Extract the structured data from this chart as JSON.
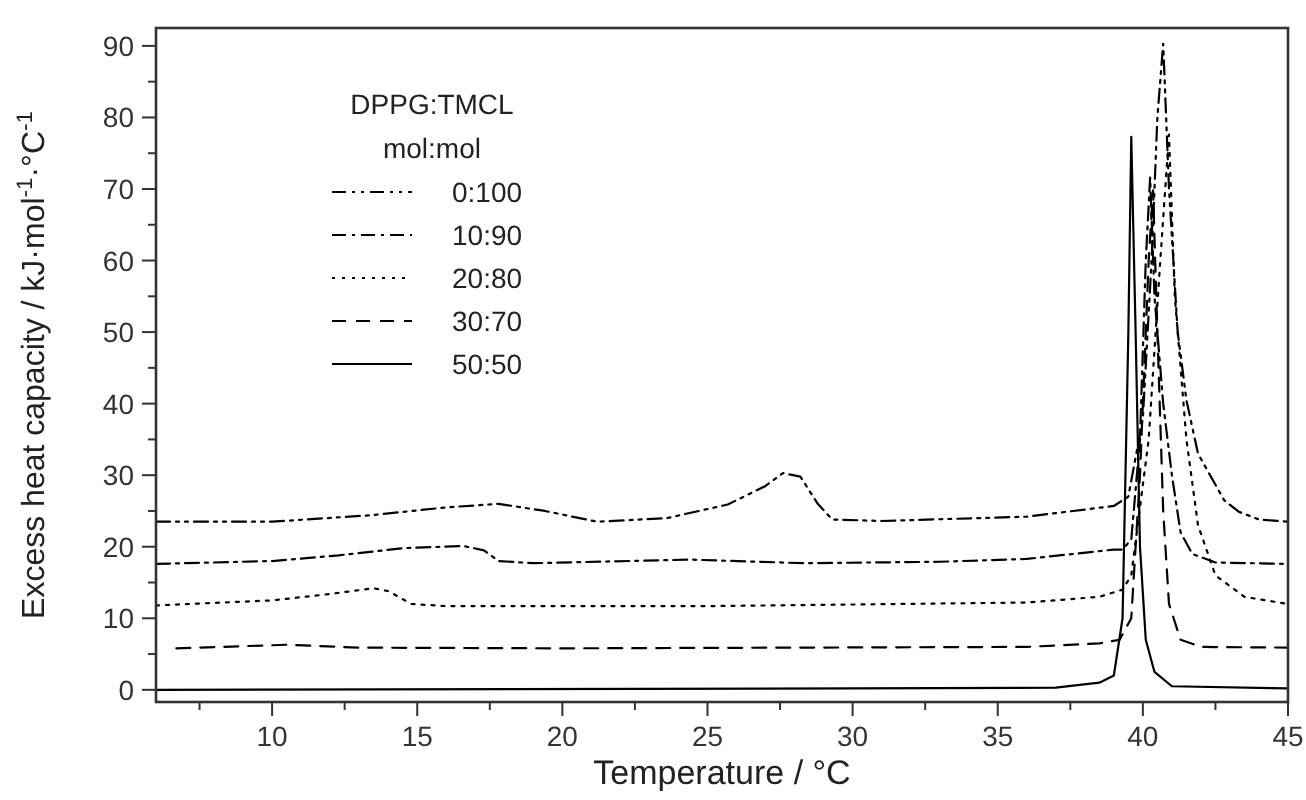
{
  "chart_data": {
    "type": "line",
    "xlabel": "Temperature / °C",
    "ylabel": "Excess heat capacity / kJ·mol$^{-1}$·°C$^{-1}$",
    "legend_title": "DPPG:TMCL\nmol:mol",
    "legend": "top left",
    "grid": false,
    "xlim": [
      6,
      45
    ],
    "ylim": [
      -1.7,
      92.5
    ],
    "xticks": [
      {
        "value": 7.5,
        "label": null
      },
      10,
      {
        "value": 12.5,
        "label": null
      },
      15,
      {
        "value": 17.5,
        "label": null
      },
      20,
      {
        "value": 22.5,
        "label": null
      },
      25,
      {
        "value": 27.5,
        "label": null
      },
      30,
      {
        "value": 32.5,
        "label": null
      },
      35,
      {
        "value": 37.5,
        "label": null
      },
      40,
      {
        "value": 42.5,
        "label": null
      },
      45
    ],
    "yticks": [
      0,
      {
        "value": 5,
        "label": null
      },
      10,
      {
        "value": 15,
        "label": null
      },
      20,
      {
        "value": 25,
        "label": null
      },
      30,
      {
        "value": 35,
        "label": null
      },
      40,
      {
        "value": 45,
        "label": null
      },
      50,
      {
        "value": 55,
        "label": null
      },
      60,
      {
        "value": 65,
        "label": null
      },
      70,
      {
        "value": 75,
        "label": null
      },
      80,
      {
        "value": 85,
        "label": null
      },
      90
    ],
    "series": [
      {
        "name": "0:100",
        "color": "#000000",
        "line_style": "dashdotdot",
        "x": [
          6,
          10,
          13.4,
          16,
          17.8,
          19.4,
          21.2,
          23.6,
          25.7,
          27,
          27.6,
          28.2,
          28.8,
          29.3,
          31,
          36,
          39,
          39.5,
          40,
          40.3,
          40.5,
          40.7,
          40.9,
          41.2,
          41.5,
          41.9,
          42.8,
          43.3,
          44,
          45
        ],
        "values": [
          23.5,
          23.5,
          24.4,
          25.5,
          26,
          25,
          23.5,
          24,
          25.9,
          28.5,
          30.3,
          29.8,
          26,
          23.8,
          23.6,
          24.2,
          25.7,
          27,
          38,
          60,
          80,
          90.3,
          70,
          50,
          40.5,
          33,
          26.5,
          24.9,
          23.8,
          23.5
        ]
      },
      {
        "name": "10:90",
        "color": "#000000",
        "line_style": "dashdot",
        "x": [
          6,
          10,
          12.3,
          14.5,
          16.6,
          17.3,
          17.8,
          19,
          24.4,
          28.3,
          33,
          36,
          39,
          39.3,
          39.6,
          39.9,
          40.1,
          40.25,
          40.4,
          40.7,
          41,
          41.3,
          41.7,
          42.5,
          45
        ],
        "values": [
          17.6,
          18,
          18.8,
          19.8,
          20.1,
          19.5,
          18,
          17.7,
          18.2,
          17.7,
          17.9,
          18.3,
          19.6,
          19.6,
          21,
          35,
          60,
          71.6,
          55,
          40,
          30,
          22,
          19,
          17.8,
          17.6
        ]
      },
      {
        "name": "20:80",
        "color": "#000000",
        "line_style": "dotted",
        "x": [
          6,
          10,
          12,
          13.5,
          14,
          14.8,
          16,
          25,
          36,
          38.5,
          39.3,
          39.6,
          40.2,
          40.6,
          40.9,
          41.1,
          41.5,
          41.9,
          42.5,
          43.5,
          45
        ],
        "values": [
          11.8,
          12.5,
          13.4,
          14.2,
          13.8,
          12,
          11.7,
          11.7,
          12.2,
          13,
          14,
          16,
          35,
          60,
          77.6,
          55,
          35,
          23,
          16,
          13,
          12
        ]
      },
      {
        "name": "30:70",
        "color": "#000000",
        "line_style": "dashed",
        "x": [
          6.7,
          10.5,
          13,
          20,
          36,
          38.5,
          39.2,
          39.6,
          39.9,
          40.2,
          40.35,
          40.5,
          40.7,
          40.9,
          41.3,
          42,
          45
        ],
        "values": [
          5.8,
          6.3,
          5.9,
          5.8,
          6,
          6.5,
          7,
          10,
          30,
          60,
          69.8,
          50,
          25,
          12,
          7,
          6,
          5.9
        ]
      },
      {
        "name": "50:50",
        "color": "#000000",
        "line_style": "solid",
        "x": [
          6,
          30,
          37,
          38.5,
          39,
          39.3,
          39.5,
          39.6,
          39.75,
          39.9,
          40.1,
          40.4,
          41,
          45
        ],
        "values": [
          0,
          0.2,
          0.3,
          1,
          2,
          10,
          50,
          77.3,
          50,
          20,
          7,
          2.5,
          0.5,
          0.2
        ]
      }
    ]
  }
}
